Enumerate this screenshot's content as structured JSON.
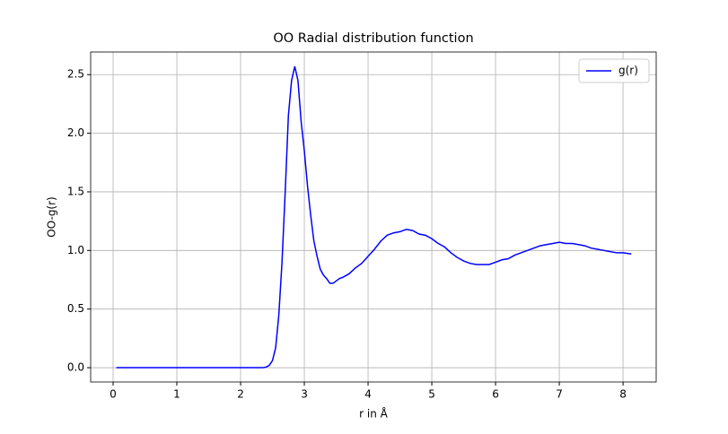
{
  "chart_data": {
    "type": "line",
    "title": "OO Radial distribution function",
    "x_label": "r in Å",
    "y_label": "OO-g(r)",
    "x": [
      0.05,
      0.5,
      1.0,
      1.5,
      2.0,
      2.35,
      2.4,
      2.45,
      2.5,
      2.55,
      2.6,
      2.65,
      2.7,
      2.75,
      2.8,
      2.85,
      2.9,
      2.95,
      3.0,
      3.05,
      3.1,
      3.15,
      3.2,
      3.25,
      3.3,
      3.35,
      3.4,
      3.45,
      3.5,
      3.55,
      3.6,
      3.7,
      3.8,
      3.9,
      4.0,
      4.1,
      4.2,
      4.3,
      4.4,
      4.5,
      4.6,
      4.7,
      4.8,
      4.9,
      5.0,
      5.1,
      5.2,
      5.3,
      5.4,
      5.5,
      5.6,
      5.7,
      5.8,
      5.9,
      6.0,
      6.1,
      6.2,
      6.3,
      6.4,
      6.5,
      6.6,
      6.7,
      6.8,
      6.9,
      7.0,
      7.1,
      7.2,
      7.3,
      7.4,
      7.5,
      7.6,
      7.7,
      7.8,
      7.9,
      8.0,
      8.13
    ],
    "series": [
      {
        "name": "g(r)",
        "color": "#0000ff",
        "values": [
          0,
          0,
          0,
          0,
          0,
          0,
          0.005,
          0.02,
          0.06,
          0.17,
          0.45,
          0.9,
          1.5,
          2.15,
          2.45,
          2.57,
          2.45,
          2.1,
          1.85,
          1.55,
          1.3,
          1.08,
          0.95,
          0.84,
          0.79,
          0.76,
          0.72,
          0.72,
          0.74,
          0.76,
          0.77,
          0.8,
          0.85,
          0.89,
          0.95,
          1.01,
          1.08,
          1.13,
          1.15,
          1.16,
          1.18,
          1.17,
          1.14,
          1.13,
          1.1,
          1.06,
          1.03,
          0.98,
          0.94,
          0.91,
          0.89,
          0.88,
          0.88,
          0.88,
          0.9,
          0.92,
          0.93,
          0.96,
          0.98,
          1.0,
          1.02,
          1.04,
          1.05,
          1.06,
          1.07,
          1.06,
          1.06,
          1.05,
          1.04,
          1.02,
          1.01,
          1.0,
          0.99,
          0.98,
          0.98,
          0.97
        ]
      }
    ],
    "xlim": [
      -0.352,
      8.52
    ],
    "ylim": [
      -0.122,
      2.693
    ],
    "xticks": [
      0,
      1,
      2,
      3,
      4,
      5,
      6,
      7,
      8
    ],
    "yticks": [
      {
        "value": 0,
        "label": "0.0"
      },
      {
        "value": 0.5,
        "label": "0.5"
      },
      {
        "value": 1,
        "label": "1.0"
      },
      {
        "value": 1.5,
        "label": "1.5"
      },
      {
        "value": 2,
        "label": "2.0"
      },
      {
        "value": 2.5,
        "label": "2.5"
      }
    ],
    "grid": true,
    "legend": "upper-right"
  }
}
